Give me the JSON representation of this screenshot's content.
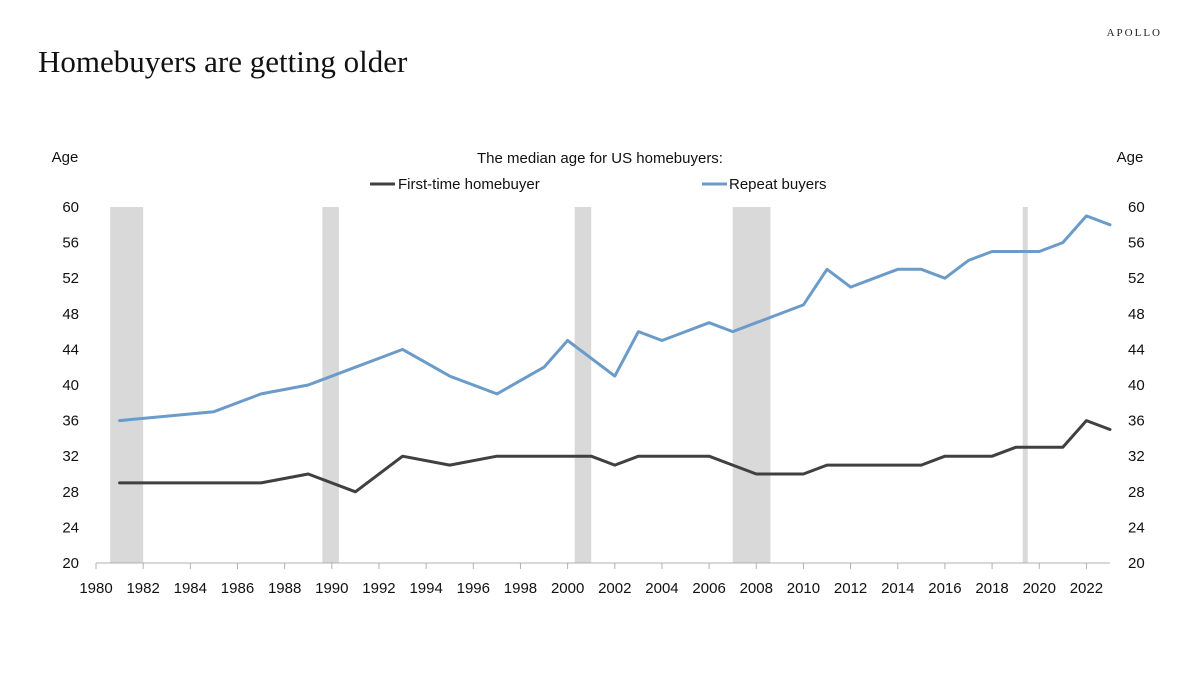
{
  "brand": "APOLLO",
  "title": "Homebuyers are getting older",
  "chart_data": {
    "type": "line",
    "subtitle": "The median age for US homebuyers:",
    "ylabel_left": "Age",
    "ylabel_right": "Age",
    "xlim": [
      1980,
      2023
    ],
    "ylim": [
      20,
      60
    ],
    "x_ticks": [
      "1980",
      "1982",
      "1984",
      "1986",
      "1988",
      "1990",
      "1992",
      "1994",
      "1996",
      "1998",
      "2000",
      "2002",
      "2004",
      "2006",
      "2008",
      "2010",
      "2012",
      "2014",
      "2016",
      "2018",
      "2020",
      "2022"
    ],
    "y_ticks": [
      "20",
      "24",
      "28",
      "32",
      "36",
      "40",
      "44",
      "48",
      "52",
      "56",
      "60"
    ],
    "recessions": [
      [
        1980.6,
        1982.0
      ],
      [
        1989.6,
        1990.3
      ],
      [
        2000.3,
        2001.0
      ],
      [
        2007.0,
        2008.6
      ],
      [
        2019.3,
        2019.5
      ]
    ],
    "legend": [
      "First-time homebuyer",
      "Repeat buyers"
    ],
    "colors": {
      "first_time": "#404040",
      "repeat": "#6b9bc8",
      "recession": "#d9d9d9"
    },
    "series": [
      {
        "name": "First-time homebuyer",
        "x": [
          1981,
          1983,
          1985,
          1987,
          1989,
          1991,
          1993,
          1995,
          1997,
          1999,
          2001,
          2002,
          2003,
          2004,
          2005,
          2006,
          2007,
          2008,
          2009,
          2010,
          2011,
          2012,
          2013,
          2014,
          2015,
          2016,
          2017,
          2018,
          2019,
          2020,
          2021,
          2022,
          2023
        ],
        "values": [
          29,
          29,
          29,
          29,
          30,
          28,
          32,
          31,
          32,
          32,
          32,
          31,
          32,
          32,
          32,
          32,
          31,
          30,
          30,
          30,
          31,
          31,
          31,
          31,
          31,
          32,
          32,
          32,
          33,
          33,
          33,
          36,
          35
        ]
      },
      {
        "name": "Repeat buyers",
        "x": [
          1981,
          1985,
          1987,
          1989,
          1991,
          1993,
          1995,
          1997,
          1999,
          2000,
          2002,
          2003,
          2004,
          2005,
          2006,
          2007,
          2008,
          2010,
          2011,
          2012,
          2013,
          2014,
          2015,
          2016,
          2017,
          2018,
          2019,
          2020,
          2021,
          2022,
          2023
        ],
        "values": [
          36,
          37,
          39,
          40,
          42,
          44,
          41,
          39,
          42,
          45,
          41,
          46,
          45,
          46,
          47,
          46,
          47,
          49,
          53,
          51,
          52,
          53,
          53,
          52,
          54,
          55,
          55,
          55,
          56,
          59,
          58
        ]
      }
    ]
  }
}
